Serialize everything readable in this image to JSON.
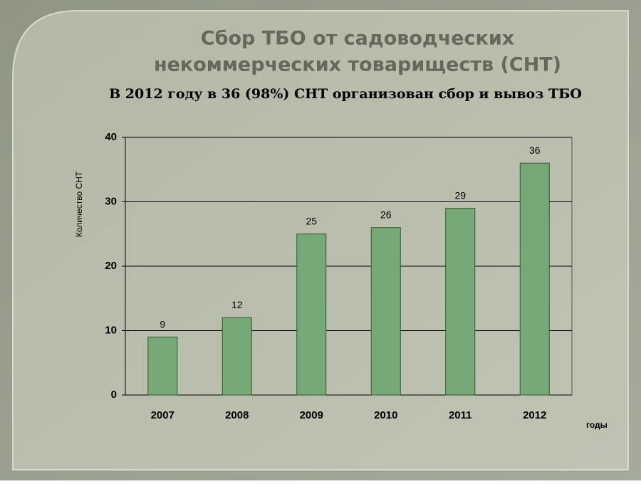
{
  "chart_data": {
    "type": "bar",
    "title": [
      "Сбор ТБО от садоводческих",
      "некоммерческих товариществ (СНТ)"
    ],
    "subtitle": "В 2012 году в 36 (98%)  СНТ организован  сбор и вывоз ТБО",
    "y_label": "Количество СНТ",
    "x_label": "годы",
    "categories": [
      "2007",
      "2008",
      "2009",
      "2010",
      "2011",
      "2012"
    ],
    "values": [
      9,
      12,
      25,
      26,
      29,
      36
    ],
    "color": "#79a878",
    "ylim": [
      0,
      40
    ],
    "yticks": [
      0,
      10,
      20,
      30,
      40
    ],
    "grid": true
  }
}
